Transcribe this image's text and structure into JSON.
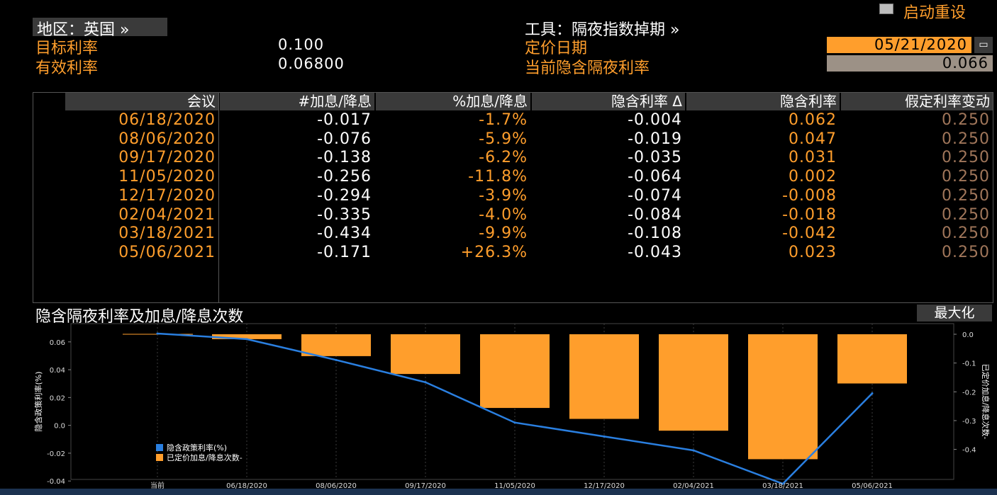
{
  "header": {
    "restart_label": "启动重设",
    "region": "地区：英国 »",
    "instrument": "工具：隔夜指数掉期 »"
  },
  "left_fields": [
    {
      "label": "目标利率",
      "value": "0.100"
    },
    {
      "label": "有效利率",
      "value": "0.06800"
    }
  ],
  "right_fields": {
    "pricing_date_label": "定价日期",
    "pricing_date_value": "05/21/2020",
    "implied_label": "当前隐含隔夜利率",
    "implied_value": "0.066"
  },
  "table": {
    "headers": [
      "会议",
      "#加息/降息",
      "%加息/降息",
      "隐含利率 Δ",
      "隐含利率",
      "假定利率变动"
    ],
    "rows": [
      [
        "06/18/2020",
        "-0.017",
        "-1.7%",
        "-0.004",
        "0.062",
        "0.250"
      ],
      [
        "08/06/2020",
        "-0.076",
        "-5.9%",
        "-0.019",
        "0.047",
        "0.250"
      ],
      [
        "09/17/2020",
        "-0.138",
        "-6.2%",
        "-0.035",
        "0.031",
        "0.250"
      ],
      [
        "11/05/2020",
        "-0.256",
        "-11.8%",
        "-0.064",
        "0.002",
        "0.250"
      ],
      [
        "12/17/2020",
        "-0.294",
        "-3.9%",
        "-0.074",
        "-0.008",
        "0.250"
      ],
      [
        "02/04/2021",
        "-0.335",
        "-4.0%",
        "-0.084",
        "-0.018",
        "0.250"
      ],
      [
        "03/18/2021",
        "-0.434",
        "-9.9%",
        "-0.108",
        "-0.042",
        "0.250"
      ],
      [
        "05/06/2021",
        "-0.171",
        "+26.3%",
        "-0.043",
        "0.023",
        "0.250"
      ]
    ]
  },
  "chart_section": {
    "title": "隐含隔夜利率及加息/降息次数",
    "maximize_label": "最大化"
  },
  "chart_data": {
    "type": "bar",
    "categories": [
      "当前",
      "06/18/2020",
      "08/06/2020",
      "09/17/2020",
      "11/05/2020",
      "12/17/2020",
      "02/04/2021",
      "03/18/2021",
      "05/06/2021"
    ],
    "series": [
      {
        "name": "隐含政策利率(%)",
        "type": "line",
        "axis": "left",
        "color": "#2a7fe0",
        "values": [
          0.066,
          0.062,
          0.047,
          0.031,
          0.002,
          -0.008,
          -0.018,
          -0.042,
          0.023
        ]
      },
      {
        "name": "已定价加息/降息次数-",
        "type": "bar",
        "axis": "right",
        "color": "#ff9e2c",
        "values": [
          null,
          -0.017,
          -0.076,
          -0.138,
          -0.256,
          -0.294,
          -0.335,
          -0.434,
          -0.171
        ]
      }
    ],
    "ylabel": "隐含政策利率(%)",
    "y2label": "已定价加息/降息次数-",
    "ylim": [
      -0.046,
      0.066
    ],
    "y2lim": [
      -0.46,
      0.0
    ],
    "yticks": [
      "0.06",
      "0.04",
      "0.02",
      "0.0",
      "-0.02",
      "-0.04"
    ],
    "y2ticks": [
      "0.0",
      "-0.1",
      "-0.2",
      "-0.3",
      "-0.4"
    ],
    "grid": "vertical dotted",
    "legend": "bottom-left"
  }
}
